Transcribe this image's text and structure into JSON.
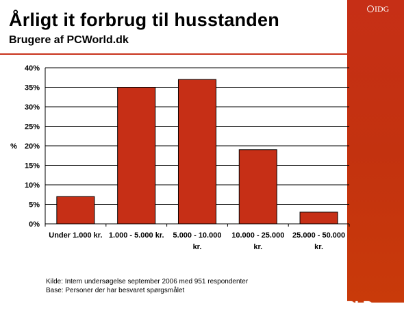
{
  "header": {
    "title": "Årligt it forbrug til husstanden",
    "subtitle": "Brugere af PCWorld.dk"
  },
  "brand": {
    "publisher": "IDG",
    "logo": "PC WORLD",
    "accent_color": "#c62f16"
  },
  "footer": {
    "source": "Kilde: Intern undersøgelse september 2006 med 951 respondenter",
    "base": "Base: Personer der har besvaret spørgsmålet"
  },
  "chart_data": {
    "type": "bar",
    "title": "Årligt it forbrug til husstanden",
    "subtitle": "Brugere af PCWorld.dk",
    "ylabel": "%",
    "xlabel": "",
    "categories": [
      [
        "Under 1.000 kr."
      ],
      [
        "1.000 - 5.000 kr."
      ],
      [
        "5.000 - 10.000",
        "kr."
      ],
      [
        "10.000 - 25.000",
        "kr."
      ],
      [
        "25.000 - 50.000",
        "kr."
      ]
    ],
    "values": [
      7,
      35,
      37,
      19,
      3
    ],
    "ylim": [
      0,
      40
    ],
    "yticks": [
      "0%",
      "5%",
      "10%",
      "15%",
      "20%",
      "25%",
      "30%",
      "35%",
      "40%"
    ],
    "grid": true,
    "bar_color": "#c62f16"
  }
}
